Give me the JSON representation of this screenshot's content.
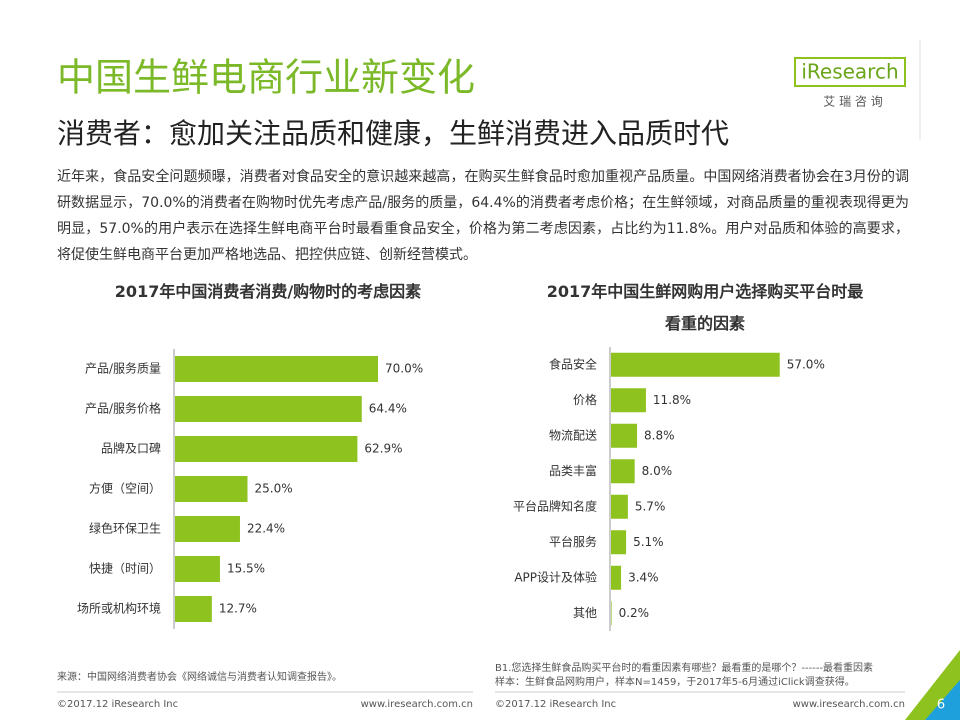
{
  "header": {
    "title": "中国生鲜电商行业新变化",
    "subtitle": "消费者：愈加关注品质和健康，生鲜消费进入品质时代",
    "logo": "iResearch",
    "logo_cn": "艾 瑞 咨 询"
  },
  "intro": "近年来，食品安全问题频曝，消费者对食品安全的意识越来越高，在购买生鲜食品时愈加重视产品质量。中国网络消费者协会在3月份的调研数据显示，70.0%的消费者在购物时优先考虑产品/服务的质量，64.4%的消费者考虑价格；在生鲜领域，对商品质量的重视表现得更为明显，57.0%的用户表示在选择生鲜电商平台时最看重食品安全，价格为第二考虑因素，占比约为11.8%。用户对品质和体验的高要求，将促使生鲜电商平台更加严格地选品、把控供应链、创新经营模式。",
  "chart_data": [
    {
      "type": "bar",
      "orientation": "horizontal",
      "title": "2017年中国消费者消费/购物时的考虑因素",
      "categories": [
        "产品/服务质量",
        "产品/服务价格",
        "品牌及口碑",
        "方便（空间）",
        "绿色环保卫生",
        "快捷（时间）",
        "场所或机构环境"
      ],
      "values": [
        70.0,
        64.4,
        62.9,
        25.0,
        22.4,
        15.5,
        12.7
      ],
      "value_labels": [
        "70.0%",
        "64.4%",
        "62.9%",
        "25.0%",
        "22.4%",
        "15.5%",
        "12.7%"
      ],
      "color": "#8dc21f"
    },
    {
      "type": "bar",
      "orientation": "horizontal",
      "title": "2017年中国生鲜网购用户选择购买平台时最看重的因素",
      "categories": [
        "食品安全",
        "价格",
        "物流配送",
        "品类丰富",
        "平台品牌知名度",
        "平台服务",
        "APP设计及体验",
        "其他"
      ],
      "values": [
        57.0,
        11.8,
        8.8,
        8.0,
        5.7,
        5.1,
        3.4,
        0.2
      ],
      "value_labels": [
        "57.0%",
        "11.8%",
        "8.8%",
        "8.0%",
        "5.7%",
        "5.1%",
        "3.4%",
        "0.2%"
      ],
      "color": "#8dc21f"
    }
  ],
  "footer": {
    "source_left": "来源：中国网络消费者协会《网络诚信与消费者认知调查报告》。",
    "note_right": [
      "B1.您选择生鲜食品购买平台时的看重因素有哪些？最看重的是哪个？------最看重因素",
      "样本：生鲜食品网购用户，样本N=1459，于2017年5-6月通过iClick调查获得。"
    ],
    "copyright": "©2017.12 iResearch Inc",
    "url": "www.iresearch.com.cn",
    "page_number": "6"
  }
}
